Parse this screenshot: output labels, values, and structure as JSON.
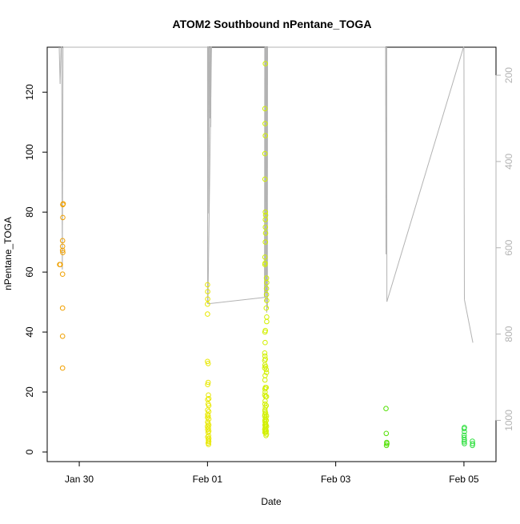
{
  "chart_data": {
    "type": "scatter",
    "title": "ATOM2 Southbound nPentane_TOGA",
    "xlabel": "Date",
    "ylabel": "nPentane_TOGA",
    "x_axis": {
      "unit": "days",
      "range": [
        "2017-01-29 12:00",
        "2017-02-05 12:00"
      ],
      "ticks": [
        {
          "label": "Jan 30",
          "value": "2017-01-30"
        },
        {
          "label": "Feb 01",
          "value": "2017-02-01"
        },
        {
          "label": "Feb 03",
          "value": "2017-02-03"
        },
        {
          "label": "Feb 05",
          "value": "2017-02-05"
        }
      ]
    },
    "y_axis": {
      "range": [
        0,
        135
      ],
      "ticks": [
        0,
        20,
        40,
        60,
        80,
        100,
        120
      ]
    },
    "y2_axis": {
      "description": "secondary axis (inverted, pressure-like) for gray altitude trace",
      "range_top": 135,
      "range_bottom": 1040,
      "ticks": [
        200,
        400,
        600,
        800,
        1000
      ],
      "color": "#b3b3b3"
    },
    "grid": false,
    "series": [
      {
        "color": "#f0a000",
        "points": [
          [
            "2017-01-29 16:40",
            62.5
          ],
          [
            "2017-01-29 16:55",
            62.5
          ],
          [
            "2017-01-29 17:50",
            82.5
          ],
          [
            "2017-01-29 18:00",
            82.8
          ],
          [
            "2017-01-29 17:50",
            78.2
          ],
          [
            "2017-01-29 17:45",
            70.5
          ],
          [
            "2017-01-29 17:45",
            68.6
          ],
          [
            "2017-01-29 17:45",
            67.2
          ],
          [
            "2017-01-29 17:50",
            66.5
          ],
          [
            "2017-01-29 17:45",
            59.3
          ],
          [
            "2017-01-29 17:45",
            48.0
          ],
          [
            "2017-01-29 17:45",
            38.6
          ],
          [
            "2017-01-29 17:45",
            28.0
          ]
        ]
      },
      {
        "color": "#e8e800",
        "points": [
          [
            "2017-02-01 00:00",
            55.8
          ],
          [
            "2017-02-01 00:05",
            53.5
          ],
          [
            "2017-02-01 00:05",
            51.0
          ],
          [
            "2017-02-01 00:00",
            49.3
          ],
          [
            "2017-02-01 00:00",
            46.0
          ],
          [
            "2017-02-01 00:00",
            30.2
          ],
          [
            "2017-02-01 00:15",
            29.5
          ],
          [
            "2017-02-01 00:05",
            22.5
          ],
          [
            "2017-02-01 00:15",
            23.2
          ],
          [
            "2017-02-01 00:20",
            19.0
          ],
          [
            "2017-02-01 00:05",
            17.5
          ],
          [
            "2017-02-01 00:30",
            17.8
          ],
          [
            "2017-02-01 00:15",
            16.0
          ],
          [
            "2017-02-01 00:30",
            15.5
          ],
          [
            "2017-02-01 00:05",
            14.0
          ],
          [
            "2017-02-01 00:30",
            13.5
          ],
          [
            "2017-02-01 00:05",
            12.5
          ],
          [
            "2017-02-01 00:15",
            12.0
          ],
          [
            "2017-02-01 00:00",
            11.5
          ],
          [
            "2017-02-01 00:30",
            11.0
          ],
          [
            "2017-02-01 00:05",
            10.0
          ],
          [
            "2017-02-01 00:15",
            9.5
          ],
          [
            "2017-02-01 00:30",
            9.0
          ],
          [
            "2017-02-01 00:00",
            8.5
          ],
          [
            "2017-02-01 00:20",
            8.0
          ],
          [
            "2017-02-01 00:05",
            7.5
          ],
          [
            "2017-02-01 00:30",
            7.0
          ],
          [
            "2017-02-01 00:15",
            6.5
          ],
          [
            "2017-02-01 00:25",
            5.5
          ],
          [
            "2017-02-01 00:05",
            5.0
          ],
          [
            "2017-02-01 00:30",
            4.5
          ],
          [
            "2017-02-01 00:20",
            4.0
          ],
          [
            "2017-02-01 00:30",
            3.5
          ],
          [
            "2017-02-01 00:15",
            3.0
          ],
          [
            "2017-02-01 00:25",
            2.5
          ]
        ]
      },
      {
        "color": "#d2f000",
        "points": [
          [
            "2017-02-01 21:40",
            129.5
          ],
          [
            "2017-02-01 21:30",
            114.5
          ],
          [
            "2017-02-01 21:35",
            109.5
          ],
          [
            "2017-02-01 21:40",
            105.5
          ],
          [
            "2017-02-01 21:30",
            99.5
          ],
          [
            "2017-02-01 21:30",
            91.0
          ],
          [
            "2017-02-01 21:40",
            80.0
          ],
          [
            "2017-02-01 21:45",
            79.0
          ],
          [
            "2017-02-01 21:40",
            77.5
          ],
          [
            "2017-02-01 21:40",
            75.0
          ],
          [
            "2017-02-01 21:45",
            73.0
          ],
          [
            "2017-02-01 21:40",
            70.0
          ],
          [
            "2017-02-01 21:30",
            65.0
          ],
          [
            "2017-02-01 21:35",
            63.0
          ],
          [
            "2017-02-01 21:30",
            62.5
          ],
          [
            "2017-02-01 22:05",
            58.0
          ],
          [
            "2017-02-01 22:10",
            56.5
          ],
          [
            "2017-02-01 22:05",
            54.5
          ],
          [
            "2017-02-01 22:05",
            52.5
          ],
          [
            "2017-02-01 22:10",
            50.5
          ],
          [
            "2017-02-01 22:00",
            48.0
          ],
          [
            "2017-02-01 22:10",
            45.0
          ],
          [
            "2017-02-01 22:10",
            43.5
          ],
          [
            "2017-02-01 21:30",
            40.0
          ],
          [
            "2017-02-01 21:40",
            40.5
          ],
          [
            "2017-02-01 21:35",
            36.5
          ],
          [
            "2017-02-01 21:25",
            33.0
          ],
          [
            "2017-02-01 21:30",
            32.0
          ],
          [
            "2017-02-01 21:25",
            30.5
          ],
          [
            "2017-02-01 21:40",
            31.0
          ],
          [
            "2017-02-01 21:30",
            29.0
          ],
          [
            "2017-02-01 21:25",
            28.0
          ],
          [
            "2017-02-01 21:45",
            28.5
          ],
          [
            "2017-02-01 22:00",
            27.5
          ],
          [
            "2017-02-01 22:05",
            26.5
          ],
          [
            "2017-02-01 21:35",
            25.5
          ],
          [
            "2017-02-01 21:30",
            24.0
          ],
          [
            "2017-02-01 21:40",
            21.5
          ],
          [
            "2017-02-01 21:30",
            21.0
          ],
          [
            "2017-02-01 22:00",
            21.5
          ],
          [
            "2017-02-01 21:35",
            20.0
          ],
          [
            "2017-02-01 21:25",
            19.0
          ],
          [
            "2017-02-01 21:45",
            18.5
          ],
          [
            "2017-02-01 22:05",
            18.5
          ],
          [
            "2017-02-01 21:35",
            17.0
          ],
          [
            "2017-02-01 21:30",
            16.0
          ],
          [
            "2017-02-01 21:40",
            15.0
          ],
          [
            "2017-02-01 22:00",
            15.5
          ],
          [
            "2017-02-01 21:30",
            14.0
          ],
          [
            "2017-02-01 21:35",
            13.5
          ],
          [
            "2017-02-01 21:45",
            13.0
          ],
          [
            "2017-02-01 21:30",
            12.5
          ],
          [
            "2017-02-01 21:25",
            12.0
          ],
          [
            "2017-02-01 22:05",
            12.0
          ],
          [
            "2017-02-01 21:50",
            11.5
          ],
          [
            "2017-02-01 21:40",
            11.0
          ],
          [
            "2017-02-01 21:30",
            10.5
          ],
          [
            "2017-02-01 22:00",
            10.5
          ],
          [
            "2017-02-01 21:35",
            10.0
          ],
          [
            "2017-02-01 21:45",
            9.5
          ],
          [
            "2017-02-01 21:30",
            9.0
          ],
          [
            "2017-02-01 21:55",
            9.0
          ],
          [
            "2017-02-01 21:40",
            8.5
          ],
          [
            "2017-02-01 22:05",
            8.5
          ],
          [
            "2017-02-01 21:35",
            8.0
          ],
          [
            "2017-02-01 21:25",
            7.5
          ],
          [
            "2017-02-01 21:50",
            7.5
          ],
          [
            "2017-02-01 21:40",
            7.0
          ],
          [
            "2017-02-01 22:00",
            7.0
          ],
          [
            "2017-02-01 21:30",
            6.5
          ],
          [
            "2017-02-01 21:45",
            6.5
          ],
          [
            "2017-02-01 22:05",
            6.0
          ],
          [
            "2017-02-01 21:55",
            5.5
          ]
        ]
      },
      {
        "color": "#50e000",
        "points": [
          [
            "2017-02-03 18:50",
            14.5
          ],
          [
            "2017-02-03 18:55",
            6.2
          ],
          [
            "2017-02-03 19:05",
            3.2
          ],
          [
            "2017-02-03 19:10",
            2.8
          ],
          [
            "2017-02-03 19:00",
            2.2
          ]
        ]
      },
      {
        "color": "#30e040",
        "points": [
          [
            "2017-02-05 00:10",
            8.2
          ],
          [
            "2017-02-05 00:05",
            7.8
          ],
          [
            "2017-02-05 00:10",
            6.8
          ],
          [
            "2017-02-05 00:05",
            5.6
          ],
          [
            "2017-02-05 00:05",
            4.8
          ],
          [
            "2017-02-05 00:10",
            4.0
          ],
          [
            "2017-02-05 00:05",
            3.4
          ],
          [
            "2017-02-05 00:10",
            2.8
          ],
          [
            "2017-02-05 03:10",
            3.6
          ],
          [
            "2017-02-05 03:15",
            2.8
          ],
          [
            "2017-02-05 03:10",
            2.2
          ]
        ]
      }
    ],
    "trace": {
      "color": "#b3b3b3",
      "axis": "y2",
      "points": [
        [
          "2017-01-29 16:30",
          135
        ],
        [
          "2017-01-29 16:50",
          220
        ],
        [
          "2017-01-29 17:10",
          135
        ],
        [
          "2017-01-29 17:25",
          135
        ],
        [
          "2017-01-29 17:40",
          650
        ],
        [
          "2017-01-29 17:55",
          135
        ],
        [
          "2017-02-01 00:00",
          135
        ],
        [
          "2017-02-01 00:05",
          730
        ],
        [
          "2017-02-01 00:10",
          135
        ],
        [
          "2017-02-01 00:20",
          135
        ],
        [
          "2017-02-01 00:30",
          520
        ],
        [
          "2017-02-01 00:40",
          135
        ],
        [
          "2017-02-01 00:45",
          135
        ],
        [
          "2017-02-01 00:55",
          300
        ],
        [
          "2017-02-01 01:05",
          135
        ],
        [
          "2017-02-01 01:10",
          135
        ],
        [
          "2017-02-01 01:15",
          320
        ],
        [
          "2017-02-01 01:20",
          135
        ],
        [
          "2017-02-01 01:25",
          135
        ],
        [
          "2017-02-01 01:30",
          135
        ],
        [
          "2017-02-01 00:10",
          730
        ],
        [
          "2017-02-01 21:20",
          715
        ],
        [
          "2017-02-01 21:25",
          135
        ],
        [
          "2017-02-01 21:35",
          135
        ],
        [
          "2017-02-01 21:40",
          725
        ],
        [
          "2017-02-01 21:45",
          135
        ],
        [
          "2017-02-01 21:50",
          135
        ],
        [
          "2017-02-01 21:55",
          705
        ],
        [
          "2017-02-01 22:00",
          135
        ],
        [
          "2017-02-01 22:05",
          135
        ],
        [
          "2017-02-01 22:10",
          750
        ],
        [
          "2017-02-01 22:15",
          135
        ],
        [
          "2017-02-01 22:20",
          135
        ],
        [
          "2017-02-01 22:25",
          740
        ],
        [
          "2017-02-01 22:30",
          135
        ],
        [
          "2017-02-03 18:40",
          135
        ],
        [
          "2017-02-03 18:50",
          615
        ],
        [
          "2017-02-03 19:00",
          135
        ],
        [
          "2017-02-03 19:05",
          135
        ],
        [
          "2017-02-03 19:10",
          725
        ],
        [
          "2017-02-04 23:50",
          135
        ],
        [
          "2017-02-05 00:00",
          135
        ],
        [
          "2017-02-05 00:10",
          720
        ],
        [
          "2017-02-05 03:20",
          820
        ]
      ]
    }
  }
}
